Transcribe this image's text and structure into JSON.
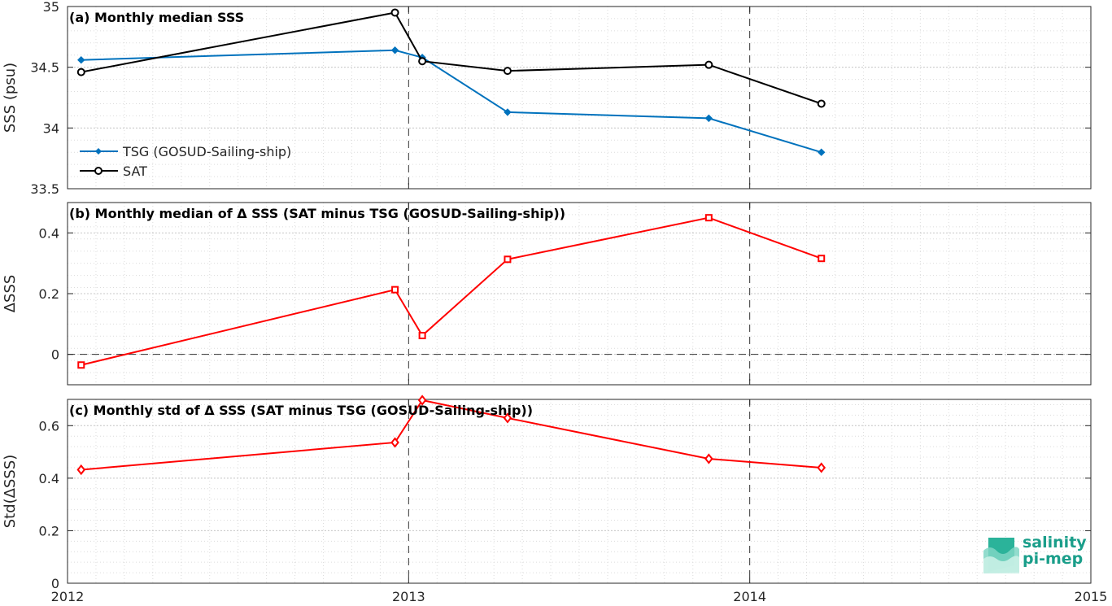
{
  "logo": {
    "line1": "salinity",
    "line2": "pi-mep"
  },
  "chart_data": [
    {
      "type": "line",
      "title": "(a) Monthly median SSS",
      "ylabel": "SSS (psu)",
      "xlim": [
        2012,
        2015
      ],
      "ylim": [
        33.5,
        35
      ],
      "yticks": [
        33.5,
        34,
        34.5,
        35
      ],
      "ytick_labels": [
        "33.5",
        "34",
        "34.5",
        "35"
      ],
      "grid": true,
      "legend_position": "lower-left",
      "x": [
        2012.04,
        2012.96,
        2013.04,
        2013.29,
        2013.88,
        2014.21
      ],
      "series": [
        {
          "name": "TSG (GOSUD-Sailing-ship)",
          "color": "#0072bd",
          "marker": "diamond-filled",
          "values": [
            34.56,
            34.64,
            34.58,
            34.13,
            34.08,
            33.8
          ]
        },
        {
          "name": "SAT",
          "color": "#000000",
          "marker": "circle-open",
          "values": [
            34.46,
            34.95,
            34.55,
            34.47,
            34.52,
            34.2
          ]
        }
      ]
    },
    {
      "type": "line",
      "title": "(b) Monthly median of Δ SSS (SAT minus TSG (GOSUD-Sailing-ship))",
      "ylabel": "ΔSSS",
      "xlim": [
        2012,
        2015
      ],
      "ylim": [
        -0.1,
        0.5
      ],
      "yticks": [
        0,
        0.2,
        0.4
      ],
      "ytick_labels": [
        "0",
        "0.2",
        "0.4"
      ],
      "grid": true,
      "zero_line": true,
      "x": [
        2012.04,
        2012.96,
        2013.04,
        2013.29,
        2013.88,
        2014.21
      ],
      "series": [
        {
          "color": "#ff0000",
          "marker": "square-open",
          "values": [
            -0.035,
            0.213,
            0.062,
            0.313,
            0.45,
            0.316
          ]
        }
      ]
    },
    {
      "type": "line",
      "title": "(c) Monthly std of Δ SSS (SAT minus TSG (GOSUD-Sailing-ship))",
      "ylabel": "Std(ΔSSS)",
      "xlim": [
        2012,
        2015
      ],
      "ylim": [
        0,
        0.7
      ],
      "yticks": [
        0,
        0.2,
        0.4,
        0.6
      ],
      "ytick_labels": [
        "0",
        "0.2",
        "0.4",
        "0.6"
      ],
      "xticks": [
        2012,
        2013,
        2014,
        2015
      ],
      "xtick_labels": [
        "2012",
        "2013",
        "2014",
        "2015"
      ],
      "grid": true,
      "x": [
        2012.04,
        2012.96,
        2013.04,
        2013.29,
        2013.88,
        2014.21
      ],
      "series": [
        {
          "color": "#ff0000",
          "marker": "diamond-open",
          "values": [
            0.432,
            0.536,
            0.697,
            0.629,
            0.474,
            0.44
          ]
        }
      ]
    }
  ]
}
